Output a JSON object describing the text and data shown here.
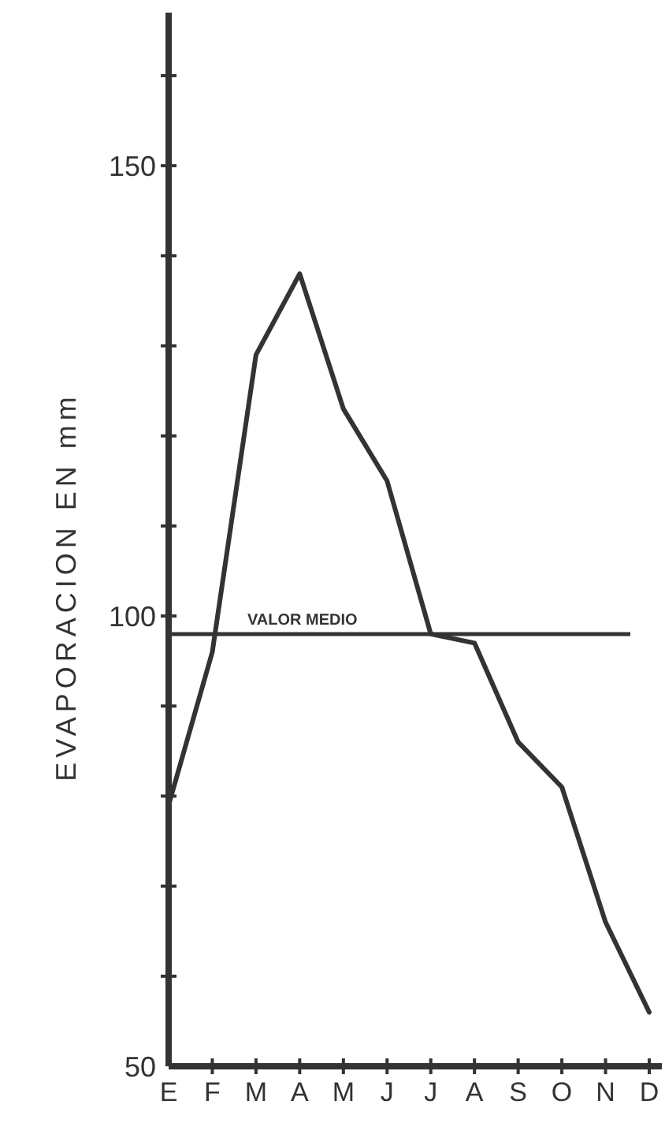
{
  "chart_data": {
    "type": "line",
    "ylabel": "EVAPORACION EN mm",
    "categories": [
      "E",
      "F",
      "M",
      "A",
      "M",
      "J",
      "J",
      "A",
      "S",
      "O",
      "N",
      "D"
    ],
    "series": [
      {
        "color": "#333333",
        "values": [
          79,
          96,
          129,
          138,
          123,
          115,
          98,
          97,
          86,
          81,
          66,
          56
        ]
      }
    ],
    "ylim": [
      50,
      167
    ],
    "yticks": [
      50,
      {
        "value": 60,
        "label": null
      },
      {
        "value": 70,
        "label": null
      },
      {
        "value": 80,
        "label": null
      },
      {
        "value": 90,
        "label": null
      },
      100,
      {
        "value": 110,
        "label": null
      },
      {
        "value": 120,
        "label": null
      },
      {
        "value": 130,
        "label": null
      },
      {
        "value": 140,
        "label": null
      },
      150,
      {
        "value": 160,
        "label": null
      }
    ],
    "ref_lines": [
      {
        "axis": "y",
        "value": 98,
        "label": "VALOR MEDIO",
        "color": "#333333"
      }
    ],
    "grid": false,
    "marker": "none",
    "line_style": "solid"
  }
}
